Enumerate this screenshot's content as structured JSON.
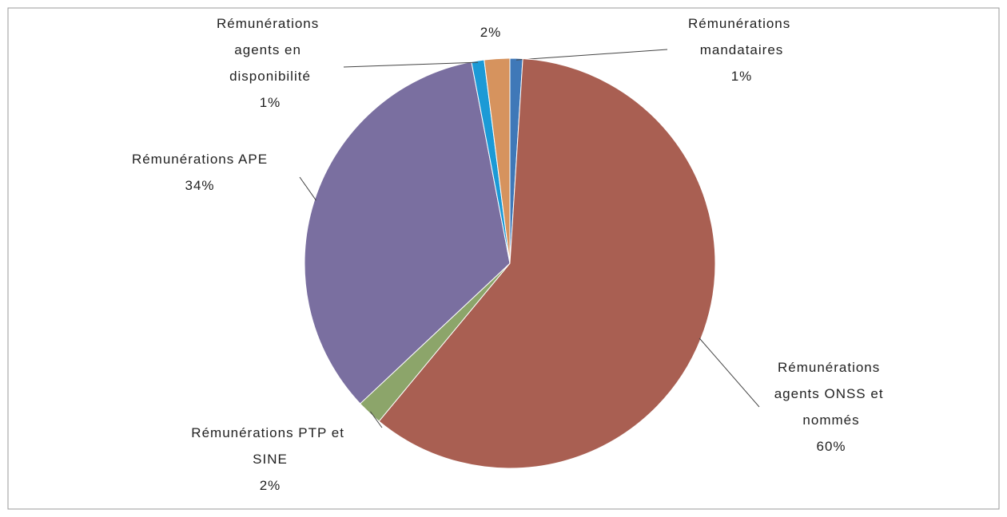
{
  "chart_data": {
    "type": "pie",
    "categories": [
      "Rémunérations mandataires",
      "Rémunérations agents ONSS et nommés",
      "Rémunérations PTP et SINE",
      "Rémunérations APE",
      "Rémunérations agents en disponibilité",
      null
    ],
    "values": [
      1,
      60,
      2,
      34,
      1,
      2
    ],
    "value_labels": [
      "1%",
      "60%",
      "2%",
      "34%",
      "1%",
      "2%"
    ],
    "colors": [
      "#3f78b8",
      "#a95f52",
      "#8ca56a",
      "#7a6fa0",
      "#1b9ad6",
      "#d6935e"
    ]
  }
}
